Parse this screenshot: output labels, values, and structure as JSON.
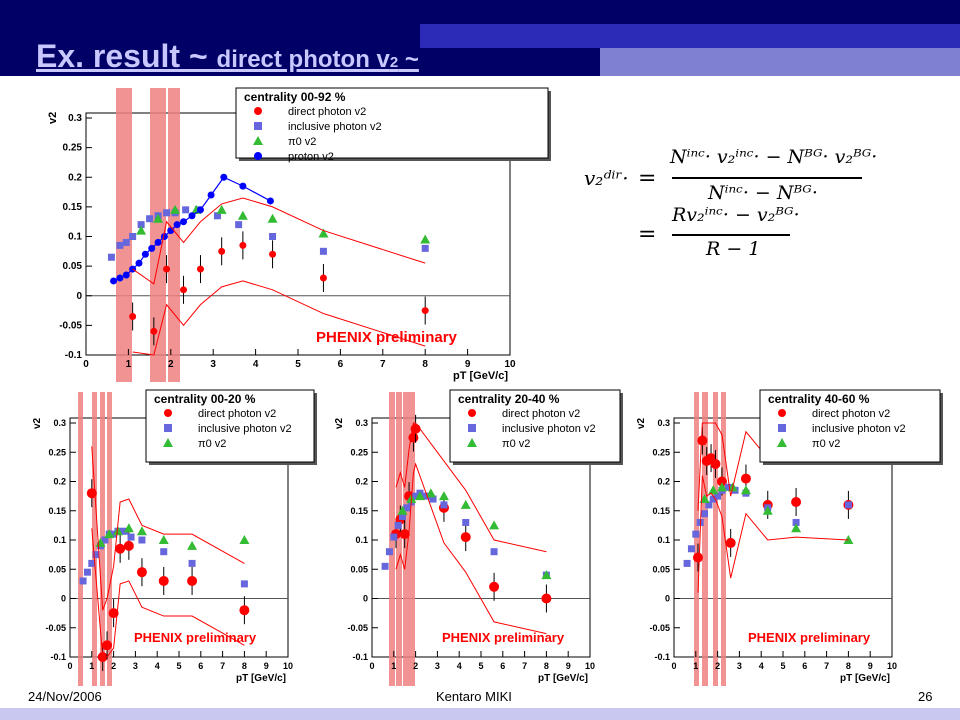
{
  "slide": {
    "title_main": "Ex. result ~ ",
    "title_sub": "direct photon v",
    "title_sub2": "2",
    "title_end": " ~",
    "footer_date": "24/Nov/2006",
    "footer_author": "Kentaro MIKI",
    "footer_page": "26"
  },
  "formula": {
    "lhs": "v₂ᵈⁱʳ·",
    "eq1": "=",
    "num1": "Nⁱⁿᶜ· v₂ⁱⁿᶜ· − Nᴮᴳ· v₂ᴮᴳ·",
    "den1": "Nⁱⁿᶜ· − Nᴮᴳ·",
    "eq2": "=",
    "num2": "Rv₂ⁱⁿᶜ· − v₂ᴮᴳ·",
    "den2": "R − 1"
  },
  "colors": {
    "direct": "#ff0000",
    "inclusive": "#6666dd",
    "pi0": "#33bb33",
    "proton": "#0000ff",
    "sys_band": "#f08080"
  },
  "chart_data": [
    {
      "type": "scatter",
      "title": "centrality 00-92 %",
      "annotation": "PHENIX preliminary",
      "xlabel": "pT [GeV/c]",
      "ylabel": "v2",
      "xlim": [
        0,
        10
      ],
      "ylim": [
        -0.1,
        0.3
      ],
      "xticks": [
        "0",
        "1",
        "2",
        "3",
        "4",
        "5",
        "6",
        "7",
        "8",
        "9",
        "10"
      ],
      "yticks": [
        "-0.1",
        "-0.05",
        "0",
        "0.05",
        "0.1",
        "0.15",
        "0.2",
        "0.25",
        "0.3"
      ],
      "legend": [
        "direct photon v2",
        "inclusive photon v2",
        "π0 v2",
        "proton v2"
      ],
      "series": [
        {
          "name": "direct photon v2",
          "marker": "dot",
          "x": [
            1.1,
            1.6,
            1.9,
            2.3,
            2.7,
            3.2,
            3.7,
            4.4,
            5.6,
            8.0
          ],
          "y": [
            -0.035,
            -0.06,
            0.045,
            0.01,
            0.045,
            0.075,
            0.085,
            0.07,
            0.03,
            -0.025
          ]
        },
        {
          "name": "inclusive photon v2",
          "marker": "square",
          "x": [
            0.6,
            0.8,
            0.95,
            1.1,
            1.3,
            1.5,
            1.7,
            1.9,
            2.1,
            2.35,
            2.65,
            3.1,
            3.6,
            4.4,
            5.6,
            8.0
          ],
          "y": [
            0.065,
            0.085,
            0.09,
            0.1,
            0.12,
            0.13,
            0.135,
            0.14,
            0.14,
            0.145,
            0.145,
            0.135,
            0.12,
            0.1,
            0.075,
            0.08
          ]
        },
        {
          "name": "π0 v2",
          "marker": "triangle",
          "x": [
            1.3,
            1.7,
            2.1,
            2.6,
            3.2,
            3.7,
            4.4,
            5.6,
            8.0
          ],
          "y": [
            0.11,
            0.13,
            0.145,
            0.145,
            0.145,
            0.135,
            0.13,
            0.105,
            0.095
          ]
        },
        {
          "name": "proton v2",
          "marker": "circle",
          "x": [
            0.65,
            0.8,
            0.95,
            1.1,
            1.25,
            1.4,
            1.55,
            1.7,
            1.85,
            2.0,
            2.15,
            2.3,
            2.5,
            2.7,
            2.95,
            3.25,
            3.7,
            4.35
          ],
          "y": [
            0.025,
            0.03,
            0.035,
            0.045,
            0.055,
            0.07,
            0.08,
            0.09,
            0.1,
            0.11,
            0.12,
            0.125,
            0.135,
            0.145,
            0.17,
            0.2,
            0.185,
            0.16
          ]
        }
      ]
    },
    {
      "type": "scatter",
      "title": "centrality 00-20 %",
      "annotation": "PHENIX preliminary",
      "xlabel": "pT [GeV/c]",
      "ylabel": "v2",
      "xlim": [
        0,
        10
      ],
      "ylim": [
        -0.1,
        0.3
      ],
      "xticks": [
        "0",
        "1",
        "2",
        "3",
        "4",
        "5",
        "6",
        "7",
        "8",
        "9",
        "10"
      ],
      "yticks": [
        "-0.1",
        "-0.05",
        "0",
        "0.05",
        "0.1",
        "0.15",
        "0.2",
        "0.25",
        "0.3"
      ],
      "legend": [
        "direct photon v2",
        "inclusive photon v2",
        "π0 v2"
      ],
      "series": [
        {
          "name": "direct photon v2",
          "marker": "dot",
          "x": [
            1.0,
            1.5,
            1.7,
            2.0,
            2.3,
            2.7,
            3.3,
            4.3,
            5.6,
            8.0
          ],
          "y": [
            0.18,
            -0.1,
            -0.08,
            -0.025,
            0.085,
            0.09,
            0.045,
            0.03,
            0.03,
            -0.02
          ]
        },
        {
          "name": "inclusive photon v2",
          "marker": "square",
          "x": [
            0.6,
            0.8,
            1.0,
            1.2,
            1.4,
            1.6,
            1.8,
            2.0,
            2.2,
            2.5,
            2.8,
            3.3,
            4.3,
            5.6,
            8.0
          ],
          "y": [
            0.03,
            0.045,
            0.06,
            0.075,
            0.09,
            0.1,
            0.11,
            0.11,
            0.115,
            0.115,
            0.105,
            0.1,
            0.08,
            0.06,
            0.025
          ]
        },
        {
          "name": "π0 v2",
          "marker": "triangle",
          "x": [
            1.4,
            1.8,
            2.2,
            2.7,
            3.3,
            4.3,
            5.6,
            8.0
          ],
          "y": [
            0.095,
            0.11,
            0.115,
            0.12,
            0.115,
            0.1,
            0.09,
            0.1
          ]
        }
      ]
    },
    {
      "type": "scatter",
      "title": "centrality 20-40 %",
      "annotation": "PHENIX preliminary",
      "xlabel": "pT [GeV/c]",
      "ylabel": "v2",
      "xlim": [
        0,
        10
      ],
      "ylim": [
        -0.1,
        0.3
      ],
      "xticks": [
        "0",
        "1",
        "2",
        "3",
        "4",
        "5",
        "6",
        "7",
        "8",
        "9",
        "10"
      ],
      "yticks": [
        "-0.1",
        "-0.05",
        "0",
        "0.05",
        "0.1",
        "0.15",
        "0.2",
        "0.25",
        "0.3"
      ],
      "legend": [
        "direct photon v2",
        "inclusive photon v2",
        "π0 v2"
      ],
      "series": [
        {
          "name": "direct photon v2",
          "marker": "dot",
          "x": [
            1.1,
            1.3,
            1.5,
            1.7,
            1.9,
            2.0,
            3.3,
            4.3,
            5.6,
            8.0
          ],
          "y": [
            0.11,
            0.135,
            0.11,
            0.175,
            0.275,
            0.29,
            0.155,
            0.105,
            0.02,
            0.0
          ]
        },
        {
          "name": "inclusive photon v2",
          "marker": "square",
          "x": [
            0.6,
            0.8,
            1.0,
            1.2,
            1.4,
            1.6,
            1.8,
            2.0,
            2.2,
            2.5,
            2.8,
            3.3,
            4.3,
            5.6,
            8.0
          ],
          "y": [
            0.055,
            0.08,
            0.105,
            0.125,
            0.14,
            0.155,
            0.165,
            0.175,
            0.18,
            0.175,
            0.17,
            0.16,
            0.13,
            0.08,
            0.04
          ]
        },
        {
          "name": "π0 v2",
          "marker": "triangle",
          "x": [
            1.4,
            1.8,
            2.2,
            2.7,
            3.3,
            4.3,
            5.6,
            8.0
          ],
          "y": [
            0.15,
            0.17,
            0.175,
            0.18,
            0.175,
            0.16,
            0.125,
            0.04
          ]
        }
      ]
    },
    {
      "type": "scatter",
      "title": "centrality 40-60 %",
      "annotation": "PHENIX preliminary",
      "xlabel": "pT [GeV/c]",
      "ylabel": "v2",
      "xlim": [
        0,
        10
      ],
      "ylim": [
        -0.1,
        0.3
      ],
      "xticks": [
        "0",
        "1",
        "2",
        "3",
        "4",
        "5",
        "6",
        "7",
        "8",
        "9",
        "10"
      ],
      "yticks": [
        "-0.1",
        "-0.05",
        "0",
        "0.05",
        "0.1",
        "0.15",
        "0.2",
        "0.25",
        "0.3"
      ],
      "legend": [
        "direct photon v2",
        "inclusive photon v2",
        "π0 v2"
      ],
      "series": [
        {
          "name": "direct photon v2",
          "marker": "dot",
          "x": [
            1.1,
            1.3,
            1.5,
            1.7,
            1.9,
            2.2,
            2.6,
            3.3,
            4.3,
            5.6,
            8.0
          ],
          "y": [
            0.07,
            0.27,
            0.235,
            0.24,
            0.23,
            0.2,
            0.095,
            0.205,
            0.16,
            0.165,
            0.16
          ]
        },
        {
          "name": "inclusive photon v2",
          "marker": "square",
          "x": [
            0.6,
            0.8,
            1.0,
            1.2,
            1.4,
            1.6,
            1.8,
            2.0,
            2.2,
            2.5,
            2.8,
            3.3,
            4.3,
            5.6,
            8.0
          ],
          "y": [
            0.06,
            0.085,
            0.11,
            0.13,
            0.145,
            0.16,
            0.17,
            0.175,
            0.185,
            0.19,
            0.185,
            0.18,
            0.155,
            0.13,
            0.16
          ]
        },
        {
          "name": "π0 v2",
          "marker": "triangle",
          "x": [
            1.4,
            1.8,
            2.2,
            2.7,
            3.3,
            4.3,
            5.6,
            8.0
          ],
          "y": [
            0.17,
            0.185,
            0.19,
            0.19,
            0.185,
            0.15,
            0.12,
            0.1
          ]
        }
      ]
    }
  ]
}
